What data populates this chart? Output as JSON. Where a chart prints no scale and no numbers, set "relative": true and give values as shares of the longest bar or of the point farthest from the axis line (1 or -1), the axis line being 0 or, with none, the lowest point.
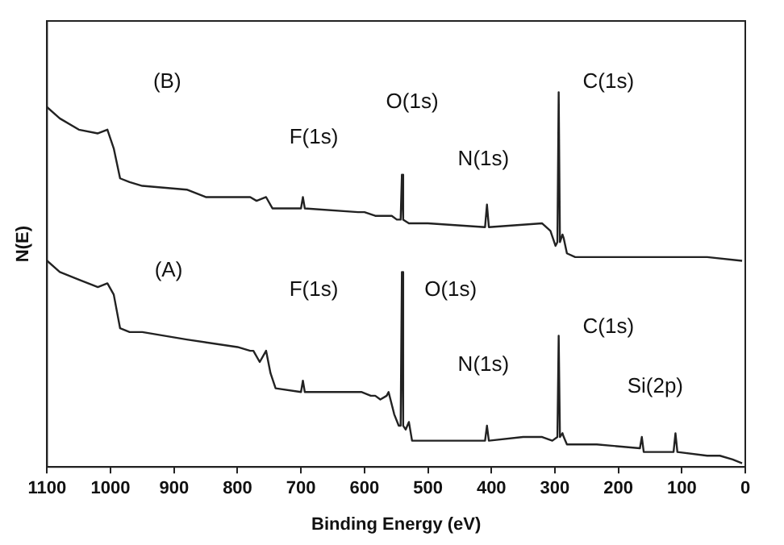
{
  "chart_data": {
    "type": "line",
    "relative": true,
    "xlabel": "Binding Energy (eV)",
    "ylabel": "N(E)",
    "xlim": [
      1100,
      0
    ],
    "xticks": [
      1100,
      1000,
      900,
      800,
      700,
      600,
      500,
      400,
      300,
      200,
      100,
      0
    ],
    "grid": false,
    "legend": false,
    "marker": "none",
    "line_style": "solid",
    "series": [
      {
        "color": "#222222",
        "x": [
          1100,
          1080,
          1050,
          1020,
          1005,
          995,
          985,
          970,
          950,
          880,
          850,
          780,
          770,
          755,
          745,
          700,
          697,
          694,
          610,
          600,
          583,
          557,
          549,
          543,
          541,
          539,
          530,
          500,
          410,
          407,
          404,
          320,
          307,
          299,
          296,
          294,
          292,
          288,
          286,
          281,
          268,
          150,
          60,
          5
        ],
        "values": [
          0.96,
          0.93,
          0.9,
          0.89,
          0.9,
          0.85,
          0.77,
          0.76,
          0.75,
          0.74,
          0.72,
          0.72,
          0.71,
          0.72,
          0.69,
          0.69,
          0.72,
          0.69,
          0.68,
          0.68,
          0.67,
          0.67,
          0.66,
          0.66,
          0.78,
          0.66,
          0.65,
          0.65,
          0.64,
          0.7,
          0.64,
          0.65,
          0.63,
          0.59,
          0.6,
          1,
          0.6,
          0.62,
          0.61,
          0.57,
          0.56,
          0.56,
          0.56,
          0.55
        ]
      },
      {
        "color": "#222222",
        "x": [
          1100,
          1080,
          1050,
          1020,
          1005,
          995,
          985,
          970,
          950,
          880,
          800,
          780,
          775,
          765,
          755,
          748,
          740,
          700,
          697,
          694,
          620,
          605,
          590,
          583,
          575,
          565,
          562,
          553,
          546,
          543,
          541,
          539,
          535,
          530,
          525,
          500,
          410,
          407,
          404,
          350,
          320,
          304,
          296,
          294,
          292,
          288,
          286,
          281,
          234,
          166,
          163,
          160,
          113,
          110,
          107,
          60,
          40,
          20,
          5
        ],
        "values": [
          0.55,
          0.52,
          0.5,
          0.48,
          0.49,
          0.46,
          0.37,
          0.36,
          0.36,
          0.34,
          0.32,
          0.31,
          0.31,
          0.28,
          0.31,
          0.25,
          0.21,
          0.2,
          0.23,
          0.2,
          0.2,
          0.2,
          0.19,
          0.19,
          0.18,
          0.19,
          0.2,
          0.14,
          0.11,
          0.11,
          0.52,
          0.11,
          0.1,
          0.12,
          0.07,
          0.07,
          0.07,
          0.11,
          0.07,
          0.08,
          0.08,
          0.07,
          0.08,
          0.35,
          0.08,
          0.09,
          0.08,
          0.06,
          0.06,
          0.05,
          0.08,
          0.04,
          0.04,
          0.09,
          0.04,
          0.03,
          0.03,
          0.02,
          0.01
        ]
      }
    ],
    "annotations": [
      "(B)",
      "F(1s)",
      "O(1s)",
      "N(1s)",
      "C(1s)",
      "(A)",
      "F(1s)",
      "O(1s)",
      "N(1s)",
      "C(1s)",
      "Si(2p)"
    ]
  }
}
